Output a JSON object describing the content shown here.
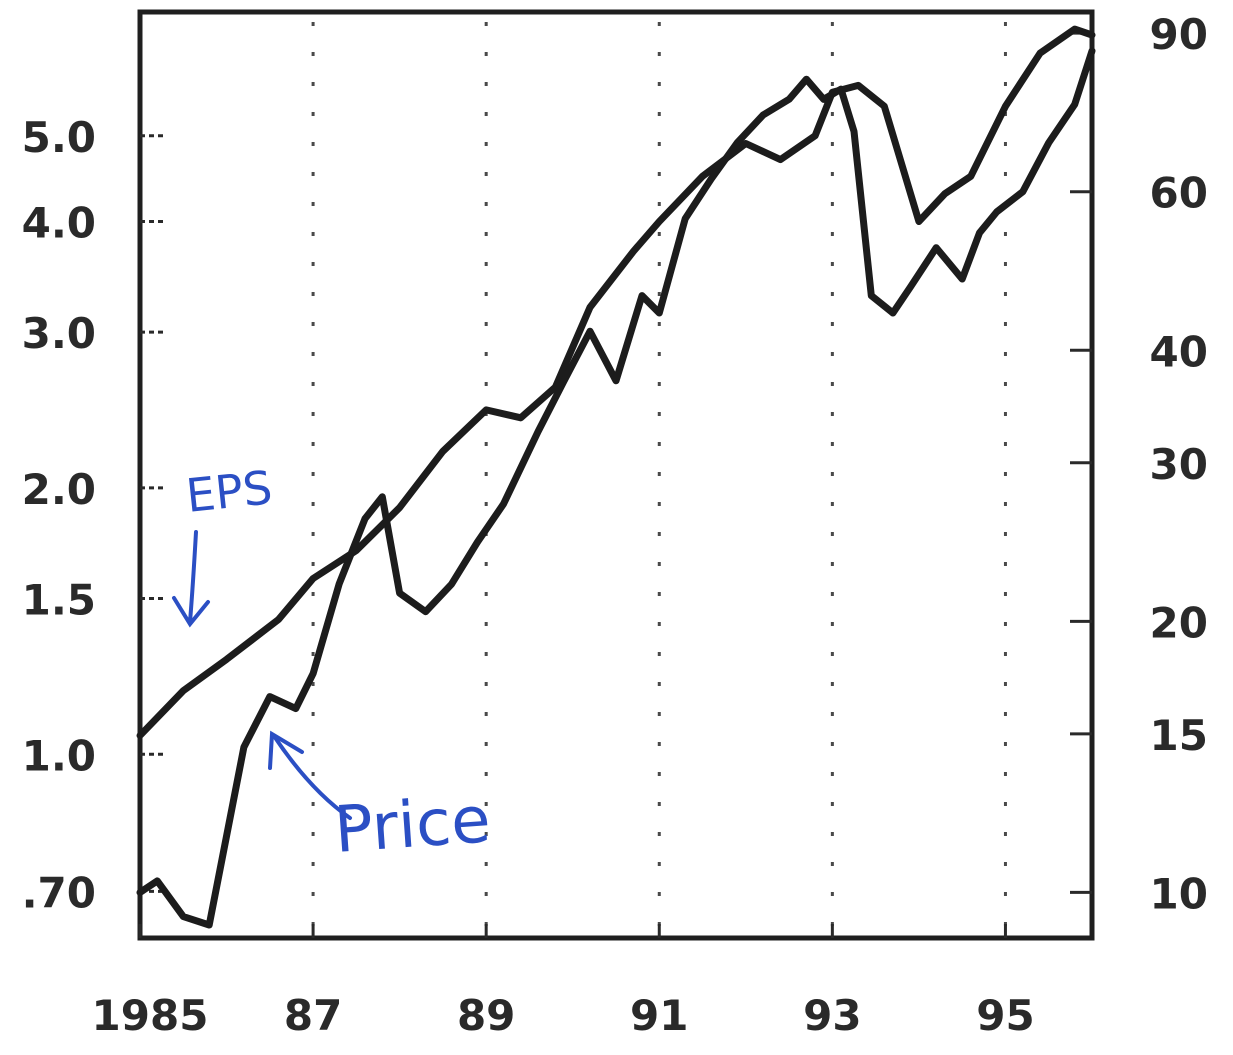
{
  "chart_data": {
    "type": "line",
    "title": "",
    "xlabel": "",
    "ylabel_left": "",
    "ylabel_right": "",
    "x_tick_labels": [
      "1985",
      "87",
      "89",
      "91",
      "93",
      "95"
    ],
    "x_ticks": [
      1985,
      1987,
      1989,
      1991,
      1993,
      1995
    ],
    "xlim": [
      1985,
      1996
    ],
    "left_axis": {
      "scale": "log",
      "series": "EPS",
      "tick_labels": [
        "5.0",
        "4.0",
        "3.0",
        "2.0",
        "1.5",
        "1.0",
        ".70"
      ],
      "ticks": [
        5.0,
        4.0,
        3.0,
        2.0,
        1.5,
        1.0,
        0.7
      ],
      "ylim": [
        0.62,
        6.9
      ]
    },
    "right_axis": {
      "scale": "log",
      "series": "Price",
      "tick_labels": [
        "90",
        "60",
        "40",
        "30",
        "20",
        "15",
        "10"
      ],
      "ticks": [
        90,
        60,
        40,
        30,
        20,
        15,
        10
      ],
      "ylim": [
        8.9,
        95
      ]
    },
    "series": [
      {
        "name": "EPS",
        "axis": "left",
        "x": [
          1985.0,
          1985.5,
          1986.0,
          1986.6,
          1987.0,
          1987.5,
          1988.0,
          1988.5,
          1989.0,
          1989.4,
          1989.8,
          1990.2,
          1990.7,
          1991.0,
          1991.5,
          1992.0,
          1992.4,
          1992.8,
          1993.0,
          1993.3,
          1993.6,
          1994.0,
          1994.3,
          1994.6,
          1995.0,
          1995.4,
          1995.8,
          1996.0
        ],
        "y": [
          1.05,
          1.18,
          1.28,
          1.42,
          1.58,
          1.7,
          1.9,
          2.2,
          2.45,
          2.4,
          2.6,
          3.2,
          3.7,
          4.0,
          4.5,
          4.9,
          4.7,
          5.0,
          5.6,
          5.7,
          5.4,
          4.0,
          4.3,
          4.5,
          5.4,
          6.2,
          6.6,
          6.5
        ]
      },
      {
        "name": "Price",
        "axis": "right",
        "x": [
          1985.0,
          1985.2,
          1985.5,
          1985.8,
          1986.2,
          1986.5,
          1986.8,
          1987.0,
          1987.3,
          1987.6,
          1987.8,
          1988.0,
          1988.3,
          1988.6,
          1988.9,
          1989.2,
          1989.6,
          1989.9,
          1990.2,
          1990.5,
          1990.8,
          1991.0,
          1991.3,
          1991.6,
          1991.9,
          1992.2,
          1992.5,
          1992.7,
          1992.9,
          1993.1,
          1993.25,
          1993.45,
          1993.7,
          1993.9,
          1994.2,
          1994.5,
          1994.7,
          1994.9,
          1995.2,
          1995.5,
          1995.8,
          1996.0
        ],
        "y": [
          10,
          10.3,
          9.4,
          9.2,
          14.5,
          16.5,
          16.0,
          17.5,
          22.0,
          26.0,
          27.5,
          21.5,
          20.5,
          22.0,
          24.5,
          27.0,
          32.5,
          37.0,
          42.0,
          37.0,
          46.0,
          44.0,
          56.0,
          62.0,
          68.0,
          73.0,
          76.0,
          80.0,
          76.0,
          78.0,
          70.0,
          46.0,
          44.0,
          47.0,
          52.0,
          48.0,
          54.0,
          57.0,
          60.0,
          68.0,
          75.0,
          86.0
        ]
      }
    ],
    "annotations": [
      {
        "text": "EPS",
        "style": "handwritten",
        "color": "#2b4fc4"
      },
      {
        "text": "Price",
        "style": "handwritten",
        "color": "#2b4fc4"
      }
    ],
    "line_color": "#1c1c1c",
    "frame_color": "#1f1f1f",
    "annotation_color": "#2b4fc4",
    "grid": false,
    "legend": "none"
  }
}
